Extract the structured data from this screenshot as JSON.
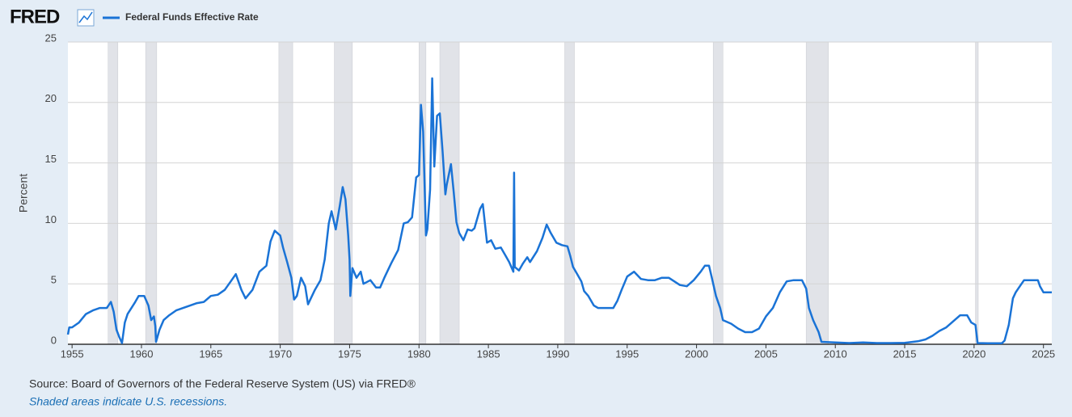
{
  "logo": "FRED",
  "chart_data": {
    "type": "line",
    "ylabel": "Percent",
    "source": "Source: Board of Governors of the Federal Reserve System (US) via FRED®",
    "note": "Shaded areas indicate U.S. recessions.",
    "grid": true,
    "xlim": [
      1954.7,
      2025.6
    ],
    "ylim": [
      0,
      25
    ],
    "xticks": [
      1955,
      1960,
      1965,
      1970,
      1975,
      1980,
      1985,
      1990,
      1995,
      2000,
      2005,
      2010,
      2015,
      2020,
      2025
    ],
    "yticks": [
      0,
      5,
      10,
      15,
      20,
      25
    ],
    "recessions": [
      [
        1957.6,
        1958.3
      ],
      [
        1960.3,
        1961.1
      ],
      [
        1969.9,
        1970.9
      ],
      [
        1973.9,
        1975.2
      ],
      [
        1980.0,
        1980.5
      ],
      [
        1981.5,
        1982.9
      ],
      [
        1990.5,
        1991.2
      ],
      [
        2001.2,
        2001.9
      ],
      [
        2007.9,
        2009.5
      ],
      [
        2020.1,
        2020.3
      ]
    ],
    "recession_color": "#e1e3e8",
    "x": [
      1954.7,
      1954.8,
      1955.0,
      1955.5,
      1956.0,
      1956.5,
      1957.0,
      1957.5,
      1957.8,
      1958.0,
      1958.2,
      1958.4,
      1958.6,
      1958.8,
      1959.0,
      1959.5,
      1959.8,
      1960.2,
      1960.5,
      1960.7,
      1960.9,
      1961.0,
      1961.05,
      1961.3,
      1961.6,
      1962.0,
      1962.5,
      1963.0,
      1963.5,
      1964.0,
      1964.5,
      1965.0,
      1965.5,
      1966.0,
      1966.5,
      1966.8,
      1967.2,
      1967.5,
      1968.0,
      1968.5,
      1969.0,
      1969.3,
      1969.6,
      1970.0,
      1970.2,
      1970.5,
      1970.8,
      1971.0,
      1971.2,
      1971.5,
      1971.8,
      1972.0,
      1972.5,
      1972.9,
      1973.2,
      1973.5,
      1973.7,
      1974.0,
      1974.3,
      1974.5,
      1974.7,
      1974.9,
      1975.0,
      1975.05,
      1975.2,
      1975.5,
      1975.8,
      1976.0,
      1976.5,
      1976.9,
      1977.2,
      1977.5,
      1978.0,
      1978.5,
      1978.9,
      1979.2,
      1979.5,
      1979.8,
      1980.0,
      1980.14,
      1980.3,
      1980.5,
      1980.6,
      1980.8,
      1980.95,
      1981.1,
      1981.3,
      1981.5,
      1981.7,
      1981.9,
      1982.0,
      1982.3,
      1982.5,
      1982.7,
      1982.9,
      1983.2,
      1983.5,
      1983.8,
      1984.0,
      1984.4,
      1984.6,
      1984.9,
      1985.2,
      1985.5,
      1985.9,
      1986.2,
      1986.5,
      1986.8,
      1986.85,
      1986.9,
      1987.2,
      1987.5,
      1987.8,
      1988.0,
      1988.5,
      1988.9,
      1989.2,
      1989.5,
      1989.9,
      1990.3,
      1990.7,
      1990.9,
      1991.1,
      1991.4,
      1991.7,
      1991.9,
      1992.2,
      1992.6,
      1992.9,
      1993.5,
      1994.0,
      1994.3,
      1994.6,
      1995.0,
      1995.5,
      1996.0,
      1996.5,
      1997.0,
      1997.5,
      1998.0,
      1998.8,
      1999.3,
      1999.8,
      2000.3,
      2000.6,
      2000.9,
      2001.1,
      2001.4,
      2001.7,
      2001.9,
      2002.5,
      2003.0,
      2003.5,
      2004.0,
      2004.5,
      2005.0,
      2005.5,
      2006.0,
      2006.5,
      2007.0,
      2007.6,
      2007.9,
      2008.1,
      2008.4,
      2008.8,
      2009.0,
      2010.0,
      2011.0,
      2012.0,
      2013.0,
      2014.0,
      2015.0,
      2015.95,
      2016.5,
      2017.0,
      2017.5,
      2018.0,
      2018.5,
      2019.0,
      2019.5,
      2019.8,
      2020.1,
      2020.25,
      2021.0,
      2022.0,
      2022.2,
      2022.5,
      2022.8,
      2023.0,
      2023.3,
      2023.6,
      2024.6,
      2024.75,
      2025.0,
      2025.6
    ],
    "series": [
      {
        "name": "Federal Funds Effective Rate",
        "color": "#1a73d6",
        "values": [
          0.8,
          1.4,
          1.4,
          1.8,
          2.5,
          2.8,
          3.0,
          3.0,
          3.5,
          2.7,
          1.2,
          0.6,
          0.1,
          1.8,
          2.5,
          3.4,
          4.0,
          4.0,
          3.2,
          2.0,
          2.3,
          1.5,
          0.2,
          1.2,
          2.0,
          2.4,
          2.8,
          3.0,
          3.2,
          3.4,
          3.5,
          4.0,
          4.1,
          4.5,
          5.3,
          5.8,
          4.5,
          3.8,
          4.5,
          6.0,
          6.5,
          8.5,
          9.4,
          9.0,
          8.0,
          6.8,
          5.5,
          3.7,
          4.0,
          5.5,
          4.8,
          3.3,
          4.5,
          5.3,
          7.0,
          10.0,
          11.0,
          9.5,
          11.5,
          13.0,
          12.0,
          9.0,
          7.0,
          4.0,
          6.3,
          5.5,
          6.0,
          5.0,
          5.3,
          4.7,
          4.7,
          5.5,
          6.7,
          7.8,
          10.0,
          10.1,
          10.5,
          13.8,
          14.0,
          19.8,
          17.6,
          9.0,
          9.5,
          12.8,
          22.0,
          14.7,
          18.9,
          19.1,
          15.9,
          12.4,
          13.2,
          14.9,
          12.6,
          10.1,
          9.2,
          8.6,
          9.5,
          9.4,
          9.6,
          11.2,
          11.6,
          8.4,
          8.6,
          7.9,
          8.0,
          7.4,
          6.8,
          6.0,
          14.2,
          6.4,
          6.1,
          6.7,
          7.2,
          6.8,
          7.7,
          8.8,
          9.9,
          9.2,
          8.4,
          8.2,
          8.1,
          7.3,
          6.4,
          5.8,
          5.2,
          4.4,
          4.0,
          3.2,
          3.0,
          3.0,
          3.0,
          3.6,
          4.5,
          5.6,
          6.0,
          5.4,
          5.3,
          5.3,
          5.5,
          5.5,
          4.9,
          4.8,
          5.3,
          6.0,
          6.5,
          6.5,
          5.5,
          4.0,
          3.0,
          2.0,
          1.7,
          1.3,
          1.0,
          1.0,
          1.3,
          2.3,
          3.0,
          4.3,
          5.2,
          5.3,
          5.3,
          4.6,
          3.0,
          2.0,
          1.0,
          0.2,
          0.15,
          0.1,
          0.15,
          0.1,
          0.1,
          0.12,
          0.25,
          0.4,
          0.7,
          1.1,
          1.4,
          1.9,
          2.4,
          2.4,
          1.8,
          1.6,
          0.1,
          0.08,
          0.08,
          0.3,
          1.6,
          3.8,
          4.3,
          4.8,
          5.3,
          5.3,
          4.8,
          4.3,
          4.3
        ]
      }
    ]
  }
}
